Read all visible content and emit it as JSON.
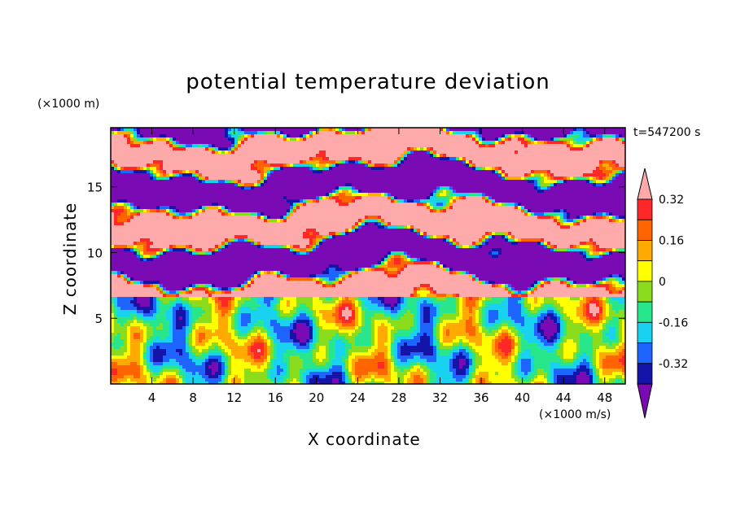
{
  "title": "potential temperature deviation",
  "z_unit": "(×1000 m)",
  "x_unit": "(×1000 m/s)",
  "time_label": "t=547200 s",
  "xlabel": "X coordinate",
  "ylabel": "Z coordinate",
  "chart_data": {
    "type": "heatmap",
    "title": "potential temperature deviation",
    "xlabel": "X coordinate",
    "ylabel": "Z coordinate",
    "xlim": [
      0,
      50
    ],
    "ylim": [
      0,
      19.5
    ],
    "x_ticks": [
      4,
      8,
      12,
      16,
      20,
      24,
      28,
      32,
      36,
      40,
      44,
      48
    ],
    "y_ticks": [
      5,
      10,
      15
    ],
    "colorbar": {
      "levels": [
        -0.4,
        -0.32,
        -0.24,
        -0.16,
        -0.08,
        0,
        0.08,
        0.16,
        0.24,
        0.32,
        0.4
      ],
      "labels": [
        "0.32",
        "0.16",
        "0",
        "-0.16",
        "-0.32"
      ],
      "label_values": [
        0.32,
        0.16,
        0,
        -0.16,
        -0.32
      ],
      "colors": [
        "#7a0ab3",
        "#1414a8",
        "#1e64ff",
        "#19d2f0",
        "#28e68c",
        "#8cdc1e",
        "#ffff00",
        "#ffaa00",
        "#ff6400",
        "#ff2828",
        "#ffaaaa"
      ],
      "extend": "both",
      "placement": "right"
    }
  }
}
